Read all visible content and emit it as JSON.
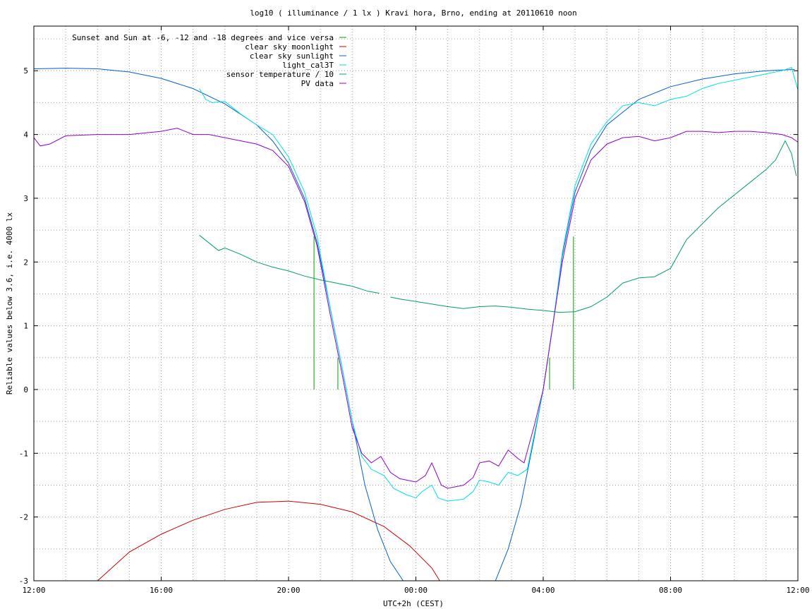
{
  "chart_data": {
    "type": "line",
    "title": "log10 ( illuminance / 1 lx ) Kravi hora, Brno, ending at 20110610 noon",
    "xlabel": "UTC+2h (CEST)",
    "ylabel": "Reliable values below 3.6, i.e. 4000 lx",
    "x_hours_range": [
      12,
      36
    ],
    "ylim": [
      -3,
      5.7
    ],
    "x_tick_labels": [
      "12:00",
      "16:00",
      "20:00",
      "00:00",
      "04:00",
      "08:00",
      "12:00"
    ],
    "y_tick_labels": [
      "-3",
      "-2",
      "-1",
      "0",
      "1",
      "2",
      "3",
      "4",
      "5"
    ],
    "y_ticks": [
      -3,
      -2,
      -1,
      0,
      1,
      2,
      3,
      4,
      5
    ],
    "grid": true,
    "legend_position": "top-left",
    "series": [
      {
        "name": "Sunset and Sun at -6, -12 and -18 degrees and vice versa",
        "color": "#00a000",
        "impulses": [
          [
            20.8,
            2.4
          ],
          [
            21.55,
            0.5
          ],
          [
            22.55,
            0.0
          ],
          [
            26.95,
            0.0
          ],
          [
            28.2,
            0.5
          ],
          [
            28.95,
            2.4
          ]
        ]
      },
      {
        "name": "clear sky moonlight",
        "color": "#d00000",
        "points": [
          [
            14.0,
            -3.0
          ],
          [
            15.0,
            -2.55
          ],
          [
            16.0,
            -2.27
          ],
          [
            17.0,
            -2.05
          ],
          [
            18.0,
            -1.88
          ],
          [
            19.0,
            -1.77
          ],
          [
            20.0,
            -1.75
          ],
          [
            21.0,
            -1.8
          ],
          [
            22.0,
            -1.92
          ],
          [
            23.0,
            -2.15
          ],
          [
            23.8,
            -2.45
          ],
          [
            24.5,
            -2.8
          ],
          [
            24.75,
            -3.0
          ]
        ]
      },
      {
        "name": "clear sky sunlight",
        "color": "#0060d0",
        "points": [
          [
            12.0,
            5.03
          ],
          [
            13.0,
            5.04
          ],
          [
            14.0,
            5.03
          ],
          [
            15.0,
            4.98
          ],
          [
            16.0,
            4.88
          ],
          [
            17.0,
            4.72
          ],
          [
            18.0,
            4.48
          ],
          [
            19.0,
            4.15
          ],
          [
            19.5,
            3.9
          ],
          [
            20.0,
            3.55
          ],
          [
            20.5,
            3.0
          ],
          [
            20.9,
            2.3
          ],
          [
            21.3,
            1.3
          ],
          [
            21.7,
            0.3
          ],
          [
            22.0,
            -0.5
          ],
          [
            22.4,
            -1.5
          ],
          [
            22.8,
            -2.2
          ],
          [
            23.2,
            -2.7
          ],
          [
            23.6,
            -3.0
          ],
          [
            26.5,
            -3.0
          ],
          [
            26.9,
            -2.5
          ],
          [
            27.3,
            -1.8
          ],
          [
            27.7,
            -0.8
          ],
          [
            28.0,
            0.0
          ],
          [
            28.3,
            1.0
          ],
          [
            28.6,
            2.1
          ],
          [
            29.0,
            3.1
          ],
          [
            29.5,
            3.75
          ],
          [
            30.0,
            4.15
          ],
          [
            31.0,
            4.55
          ],
          [
            32.0,
            4.75
          ],
          [
            33.0,
            4.87
          ],
          [
            34.0,
            4.95
          ],
          [
            35.0,
            5.0
          ],
          [
            35.9,
            5.02
          ]
        ]
      },
      {
        "name": "light_cal3T",
        "color": "#00e0e0",
        "points": [
          [
            17.2,
            4.72
          ],
          [
            17.4,
            4.55
          ],
          [
            17.6,
            4.5
          ],
          [
            18.0,
            4.52
          ],
          [
            18.5,
            4.32
          ],
          [
            19.0,
            4.15
          ],
          [
            19.5,
            4.0
          ],
          [
            20.0,
            3.65
          ],
          [
            20.5,
            3.1
          ],
          [
            20.9,
            2.4
          ],
          [
            21.3,
            1.3
          ],
          [
            21.7,
            0.3
          ],
          [
            22.0,
            -0.5
          ],
          [
            22.3,
            -1.05
          ],
          [
            22.6,
            -1.25
          ],
          [
            23.0,
            -1.35
          ],
          [
            23.3,
            -1.55
          ],
          [
            23.7,
            -1.65
          ],
          [
            24.0,
            -1.7
          ],
          [
            24.2,
            -1.6
          ],
          [
            24.5,
            -1.5
          ],
          [
            24.7,
            -1.7
          ],
          [
            25.0,
            -1.75
          ],
          [
            25.5,
            -1.72
          ],
          [
            25.8,
            -1.6
          ],
          [
            26.0,
            -1.42
          ],
          [
            26.3,
            -1.45
          ],
          [
            26.6,
            -1.5
          ],
          [
            26.9,
            -1.3
          ],
          [
            27.2,
            -1.35
          ],
          [
            27.5,
            -1.25
          ],
          [
            27.8,
            -0.5
          ],
          [
            28.0,
            0.0
          ],
          [
            28.3,
            1.0
          ],
          [
            28.6,
            2.15
          ],
          [
            29.0,
            3.2
          ],
          [
            29.5,
            3.85
          ],
          [
            30.0,
            4.2
          ],
          [
            30.5,
            4.45
          ],
          [
            31.0,
            4.5
          ],
          [
            31.5,
            4.45
          ],
          [
            32.0,
            4.55
          ],
          [
            32.5,
            4.6
          ],
          [
            33.0,
            4.72
          ],
          [
            33.5,
            4.8
          ],
          [
            34.0,
            4.85
          ],
          [
            34.5,
            4.9
          ],
          [
            35.0,
            4.95
          ],
          [
            35.5,
            5.0
          ],
          [
            35.8,
            5.05
          ],
          [
            36.0,
            4.7
          ]
        ]
      },
      {
        "name": "sensor temperature / 10",
        "color": "#00a060",
        "points": [
          [
            17.2,
            2.42
          ],
          [
            17.5,
            2.3
          ],
          [
            17.8,
            2.18
          ],
          [
            18.0,
            2.22
          ],
          [
            18.5,
            2.12
          ],
          [
            19.0,
            2.0
          ],
          [
            19.5,
            1.92
          ],
          [
            20.0,
            1.86
          ],
          [
            20.5,
            1.78
          ],
          [
            21.0,
            1.72
          ],
          [
            21.5,
            1.67
          ],
          [
            22.0,
            1.62
          ],
          [
            22.5,
            1.54
          ],
          [
            22.85,
            1.51
          ],
          [
            null,
            null
          ],
          [
            23.2,
            1.45
          ],
          [
            23.5,
            1.42
          ],
          [
            24.0,
            1.38
          ],
          [
            24.5,
            1.34
          ],
          [
            25.0,
            1.3
          ],
          [
            25.5,
            1.27
          ],
          [
            26.0,
            1.3
          ],
          [
            26.5,
            1.31
          ],
          [
            27.0,
            1.29
          ],
          [
            27.5,
            1.26
          ],
          [
            28.0,
            1.24
          ],
          [
            28.5,
            1.21
          ],
          [
            29.0,
            1.22
          ],
          [
            29.5,
            1.3
          ],
          [
            30.0,
            1.45
          ],
          [
            30.5,
            1.67
          ],
          [
            31.0,
            1.75
          ],
          [
            31.5,
            1.77
          ],
          [
            32.0,
            1.9
          ],
          [
            32.5,
            2.35
          ],
          [
            33.0,
            2.6
          ],
          [
            33.5,
            2.85
          ],
          [
            34.0,
            3.05
          ],
          [
            34.5,
            3.25
          ],
          [
            35.0,
            3.45
          ],
          [
            35.3,
            3.6
          ],
          [
            35.5,
            3.8
          ],
          [
            35.6,
            3.9
          ],
          [
            35.8,
            3.7
          ],
          [
            35.95,
            3.35
          ]
        ]
      },
      {
        "name": "PV data",
        "color": "#9000d0",
        "points": [
          [
            12.0,
            3.95
          ],
          [
            12.2,
            3.82
          ],
          [
            12.5,
            3.85
          ],
          [
            13.0,
            3.98
          ],
          [
            14.0,
            4.0
          ],
          [
            15.0,
            4.0
          ],
          [
            16.0,
            4.05
          ],
          [
            16.5,
            4.1
          ],
          [
            17.0,
            4.0
          ],
          [
            17.5,
            4.0
          ],
          [
            18.0,
            3.95
          ],
          [
            18.5,
            3.9
          ],
          [
            19.0,
            3.85
          ],
          [
            19.5,
            3.75
          ],
          [
            20.0,
            3.5
          ],
          [
            20.5,
            2.95
          ],
          [
            20.9,
            2.25
          ],
          [
            21.3,
            1.2
          ],
          [
            21.7,
            0.2
          ],
          [
            22.0,
            -0.6
          ],
          [
            22.3,
            -1.0
          ],
          [
            22.6,
            -1.15
          ],
          [
            22.9,
            -1.05
          ],
          [
            23.2,
            -1.3
          ],
          [
            23.5,
            -1.4
          ],
          [
            24.0,
            -1.45
          ],
          [
            24.3,
            -1.35
          ],
          [
            24.5,
            -1.15
          ],
          [
            24.8,
            -1.5
          ],
          [
            25.0,
            -1.55
          ],
          [
            25.5,
            -1.5
          ],
          [
            25.8,
            -1.38
          ],
          [
            26.0,
            -1.15
          ],
          [
            26.3,
            -1.12
          ],
          [
            26.6,
            -1.2
          ],
          [
            26.9,
            -0.95
          ],
          [
            27.2,
            -1.08
          ],
          [
            27.4,
            -1.15
          ],
          [
            27.7,
            -0.6
          ],
          [
            28.0,
            0.0
          ],
          [
            28.3,
            1.0
          ],
          [
            28.6,
            2.0
          ],
          [
            29.0,
            3.0
          ],
          [
            29.5,
            3.6
          ],
          [
            30.0,
            3.85
          ],
          [
            30.5,
            3.95
          ],
          [
            31.0,
            3.97
          ],
          [
            31.5,
            3.9
          ],
          [
            32.0,
            3.95
          ],
          [
            32.5,
            4.05
          ],
          [
            33.0,
            4.05
          ],
          [
            33.5,
            4.03
          ],
          [
            34.0,
            4.05
          ],
          [
            34.5,
            4.05
          ],
          [
            35.0,
            4.03
          ],
          [
            35.5,
            4.0
          ],
          [
            35.8,
            3.95
          ],
          [
            36.0,
            3.88
          ]
        ]
      }
    ]
  }
}
